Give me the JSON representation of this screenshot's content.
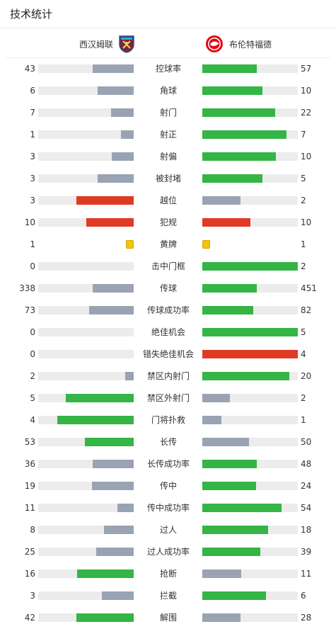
{
  "title": "技术统计",
  "teams": {
    "home": "西汉姆联",
    "away": "布伦特福德"
  },
  "colors": {
    "win": "#34b545",
    "lose": "#9aa3b3",
    "red": "#e03a24",
    "yellow": "#f5c400",
    "track": "#ececec"
  },
  "stats": [
    {
      "label": "控球率",
      "home": "43",
      "away": "57",
      "hf": 0.43,
      "af": 0.57,
      "hc": "lose",
      "ac": "win"
    },
    {
      "label": "角球",
      "home": "6",
      "away": "10",
      "hf": 0.38,
      "af": 0.63,
      "hc": "lose",
      "ac": "win"
    },
    {
      "label": "射门",
      "home": "7",
      "away": "22",
      "hf": 0.24,
      "af": 0.76,
      "hc": "lose",
      "ac": "win"
    },
    {
      "label": "射正",
      "home": "1",
      "away": "7",
      "hf": 0.13,
      "af": 0.88,
      "hc": "lose",
      "ac": "win"
    },
    {
      "label": "射偏",
      "home": "3",
      "away": "10",
      "hf": 0.23,
      "af": 0.77,
      "hc": "lose",
      "ac": "win"
    },
    {
      "label": "被封堵",
      "home": "3",
      "away": "5",
      "hf": 0.38,
      "af": 0.63,
      "hc": "lose",
      "ac": "win"
    },
    {
      "label": "越位",
      "home": "3",
      "away": "2",
      "hf": 0.6,
      "af": 0.4,
      "hc": "red",
      "ac": "lose"
    },
    {
      "label": "犯规",
      "home": "10",
      "away": "10",
      "hf": 0.5,
      "af": 0.5,
      "hc": "red",
      "ac": "red"
    },
    {
      "label": "黄牌",
      "home": "1",
      "away": "1",
      "hf": 0,
      "af": 0,
      "hc": "card",
      "ac": "card"
    },
    {
      "label": "击中门框",
      "home": "0",
      "away": "2",
      "hf": 0,
      "af": 1.0,
      "hc": "lose",
      "ac": "win"
    },
    {
      "label": "传球",
      "home": "338",
      "away": "451",
      "hf": 0.43,
      "af": 0.57,
      "hc": "lose",
      "ac": "win"
    },
    {
      "label": "传球成功率",
      "home": "73",
      "away": "82",
      "hf": 0.47,
      "af": 0.53,
      "hc": "lose",
      "ac": "win"
    },
    {
      "label": "绝佳机会",
      "home": "0",
      "away": "5",
      "hf": 0,
      "af": 1.0,
      "hc": "lose",
      "ac": "win"
    },
    {
      "label": "错失绝佳机会",
      "home": "0",
      "away": "4",
      "hf": 0,
      "af": 1.0,
      "hc": "lose",
      "ac": "red"
    },
    {
      "label": "禁区内射门",
      "home": "2",
      "away": "20",
      "hf": 0.09,
      "af": 0.91,
      "hc": "lose",
      "ac": "win"
    },
    {
      "label": "禁区外射门",
      "home": "5",
      "away": "2",
      "hf": 0.71,
      "af": 0.29,
      "hc": "win",
      "ac": "lose"
    },
    {
      "label": "门将扑救",
      "home": "4",
      "away": "1",
      "hf": 0.8,
      "af": 0.2,
      "hc": "win",
      "ac": "lose"
    },
    {
      "label": "长传",
      "home": "53",
      "away": "50",
      "hf": 0.51,
      "af": 0.49,
      "hc": "win",
      "ac": "lose"
    },
    {
      "label": "长传成功率",
      "home": "36",
      "away": "48",
      "hf": 0.43,
      "af": 0.57,
      "hc": "lose",
      "ac": "win"
    },
    {
      "label": "传中",
      "home": "19",
      "away": "24",
      "hf": 0.44,
      "af": 0.56,
      "hc": "lose",
      "ac": "win"
    },
    {
      "label": "传中成功率",
      "home": "11",
      "away": "54",
      "hf": 0.17,
      "af": 0.83,
      "hc": "lose",
      "ac": "win"
    },
    {
      "label": "过人",
      "home": "8",
      "away": "18",
      "hf": 0.31,
      "af": 0.69,
      "hc": "lose",
      "ac": "win"
    },
    {
      "label": "过人成功率",
      "home": "25",
      "away": "39",
      "hf": 0.39,
      "af": 0.61,
      "hc": "lose",
      "ac": "win"
    },
    {
      "label": "抢断",
      "home": "16",
      "away": "11",
      "hf": 0.59,
      "af": 0.41,
      "hc": "win",
      "ac": "lose"
    },
    {
      "label": "拦截",
      "home": "3",
      "away": "6",
      "hf": 0.33,
      "af": 0.67,
      "hc": "lose",
      "ac": "win"
    },
    {
      "label": "解围",
      "home": "42",
      "away": "28",
      "hf": 0.6,
      "af": 0.4,
      "hc": "win",
      "ac": "lose"
    }
  ]
}
